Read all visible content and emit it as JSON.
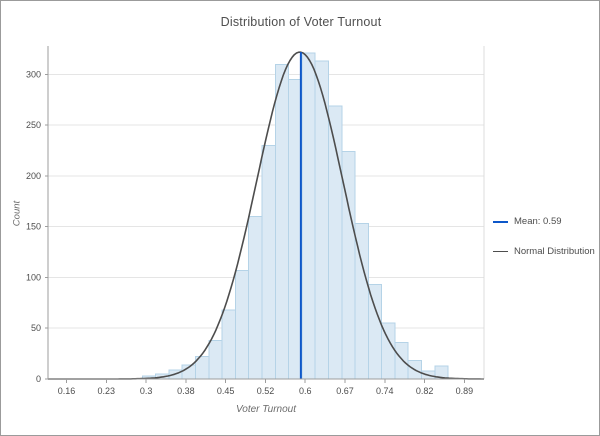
{
  "window": {
    "background": "#ffffff",
    "border_color": "#9b9b9b"
  },
  "chart_data": {
    "type": "histogram",
    "title": "Distribution of Voter Turnout",
    "xlabel": "Voter Turnout",
    "ylabel": "Count",
    "x_tick_labels": [
      "0.16",
      "0.23",
      "0.3",
      "0.38",
      "0.45",
      "0.52",
      "0.6",
      "0.67",
      "0.74",
      "0.82",
      "0.89"
    ],
    "x_tick_values": [
      0.16,
      0.233,
      0.306,
      0.379,
      0.452,
      0.525,
      0.598,
      0.671,
      0.744,
      0.817,
      0.89
    ],
    "y_ticks": [
      0,
      50,
      100,
      150,
      200,
      250,
      300
    ],
    "xlim": [
      0.126,
      0.926
    ],
    "ylim": [
      0,
      328
    ],
    "grid": true,
    "legend_position": "right",
    "bins": {
      "start": 0.299,
      "width": 0.0244,
      "counts": [
        3,
        5,
        9,
        14,
        22,
        38,
        68,
        107,
        160,
        230,
        310,
        295,
        321,
        313,
        269,
        224,
        153,
        93,
        55,
        36,
        18,
        8,
        13
      ]
    },
    "normal_curve": {
      "mean": 0.588,
      "sigma": 0.079,
      "peak": 322
    },
    "mean_line": {
      "value": 0.59
    },
    "legend": {
      "items": [
        {
          "label": "Mean: 0.59",
          "color": "#0d57c9",
          "shape": "line"
        },
        {
          "label": "Normal Distribution",
          "color": "#4d4d4d",
          "shape": "line"
        }
      ]
    },
    "colors": {
      "bar_fill": "#dbe9f4",
      "bar_stroke": "#b5d3e7",
      "curve": "#4d4d4d",
      "mean_line": "#0d57c9",
      "grid": "#e5e5e5",
      "axis": "#9d9d9d",
      "plot_right_border": "#dcdcdc",
      "tick_text": "#4d4d4d"
    }
  }
}
